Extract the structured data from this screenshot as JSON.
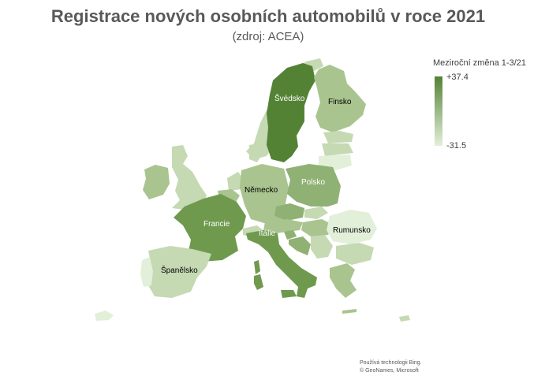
{
  "title": "Registrace nových osobních automobilů v roce 2021",
  "subtitle": "(zdroj: ACEA)",
  "legend": {
    "title": "Meziroční změna 1-3/21",
    "max_label": "+37.4",
    "min_label": "-31.5",
    "color_max": "#548235",
    "color_min": "#e2efd9"
  },
  "countries": {
    "sweden": "Švédsko",
    "finland": "Finsko",
    "germany": "Německo",
    "poland": "Polsko",
    "france": "Francie",
    "italy": "Itálie",
    "romania": "Rumunsko",
    "spain": "Španělsko"
  },
  "attribution": {
    "line1": "Používá technologii Bing.",
    "line2": "© GeoNames, Microsoft"
  }
}
